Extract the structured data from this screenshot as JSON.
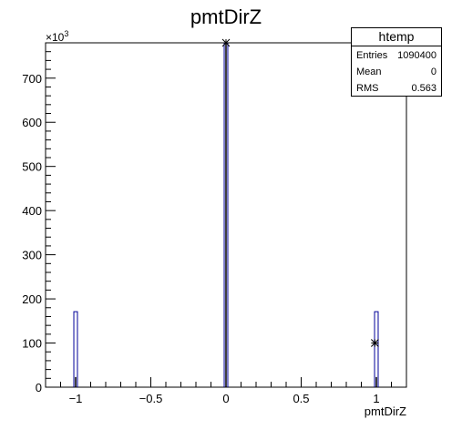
{
  "chart_data": {
    "type": "histogram",
    "title": "pmtDirZ",
    "xlabel": "pmtDirZ",
    "ylabel": "",
    "y_multiplier": "×10",
    "y_multiplier_exponent": "3",
    "xlim": [
      -1.2,
      1.2
    ],
    "ylim": [
      0,
      780
    ],
    "x_ticks": [
      -1,
      -0.5,
      0,
      0.5,
      1
    ],
    "x_tick_labels": [
      "−1",
      "−0.5",
      "0",
      "0.5",
      "1"
    ],
    "y_ticks": [
      0,
      100,
      200,
      300,
      400,
      500,
      600,
      700
    ],
    "y_tick_labels": [
      "0",
      "100",
      "200",
      "300",
      "400",
      "500",
      "600",
      "700"
    ],
    "bin_width": 0.024,
    "bins": [
      {
        "x": -1.0,
        "value": 171
      },
      {
        "x": 0.0,
        "value": 780
      },
      {
        "x": 1.0,
        "value": 171
      }
    ],
    "inner_spikes": [
      {
        "x": -1.0,
        "value": 23
      },
      {
        "x": 0.0,
        "value": 780
      },
      {
        "x": 1.0,
        "value": 23
      }
    ],
    "markers": [
      {
        "x": 0.0,
        "value": 780
      },
      {
        "x": 0.99,
        "value": 100
      }
    ],
    "stats": {
      "title": "htemp",
      "rows": [
        {
          "key": "Entries",
          "value": "1090400"
        },
        {
          "key": "Mean",
          "value": "0"
        },
        {
          "key": "RMS",
          "value": "0.563"
        }
      ]
    },
    "colors": {
      "line": "#000099",
      "axis": "#000000",
      "background": "#ffffff"
    }
  }
}
